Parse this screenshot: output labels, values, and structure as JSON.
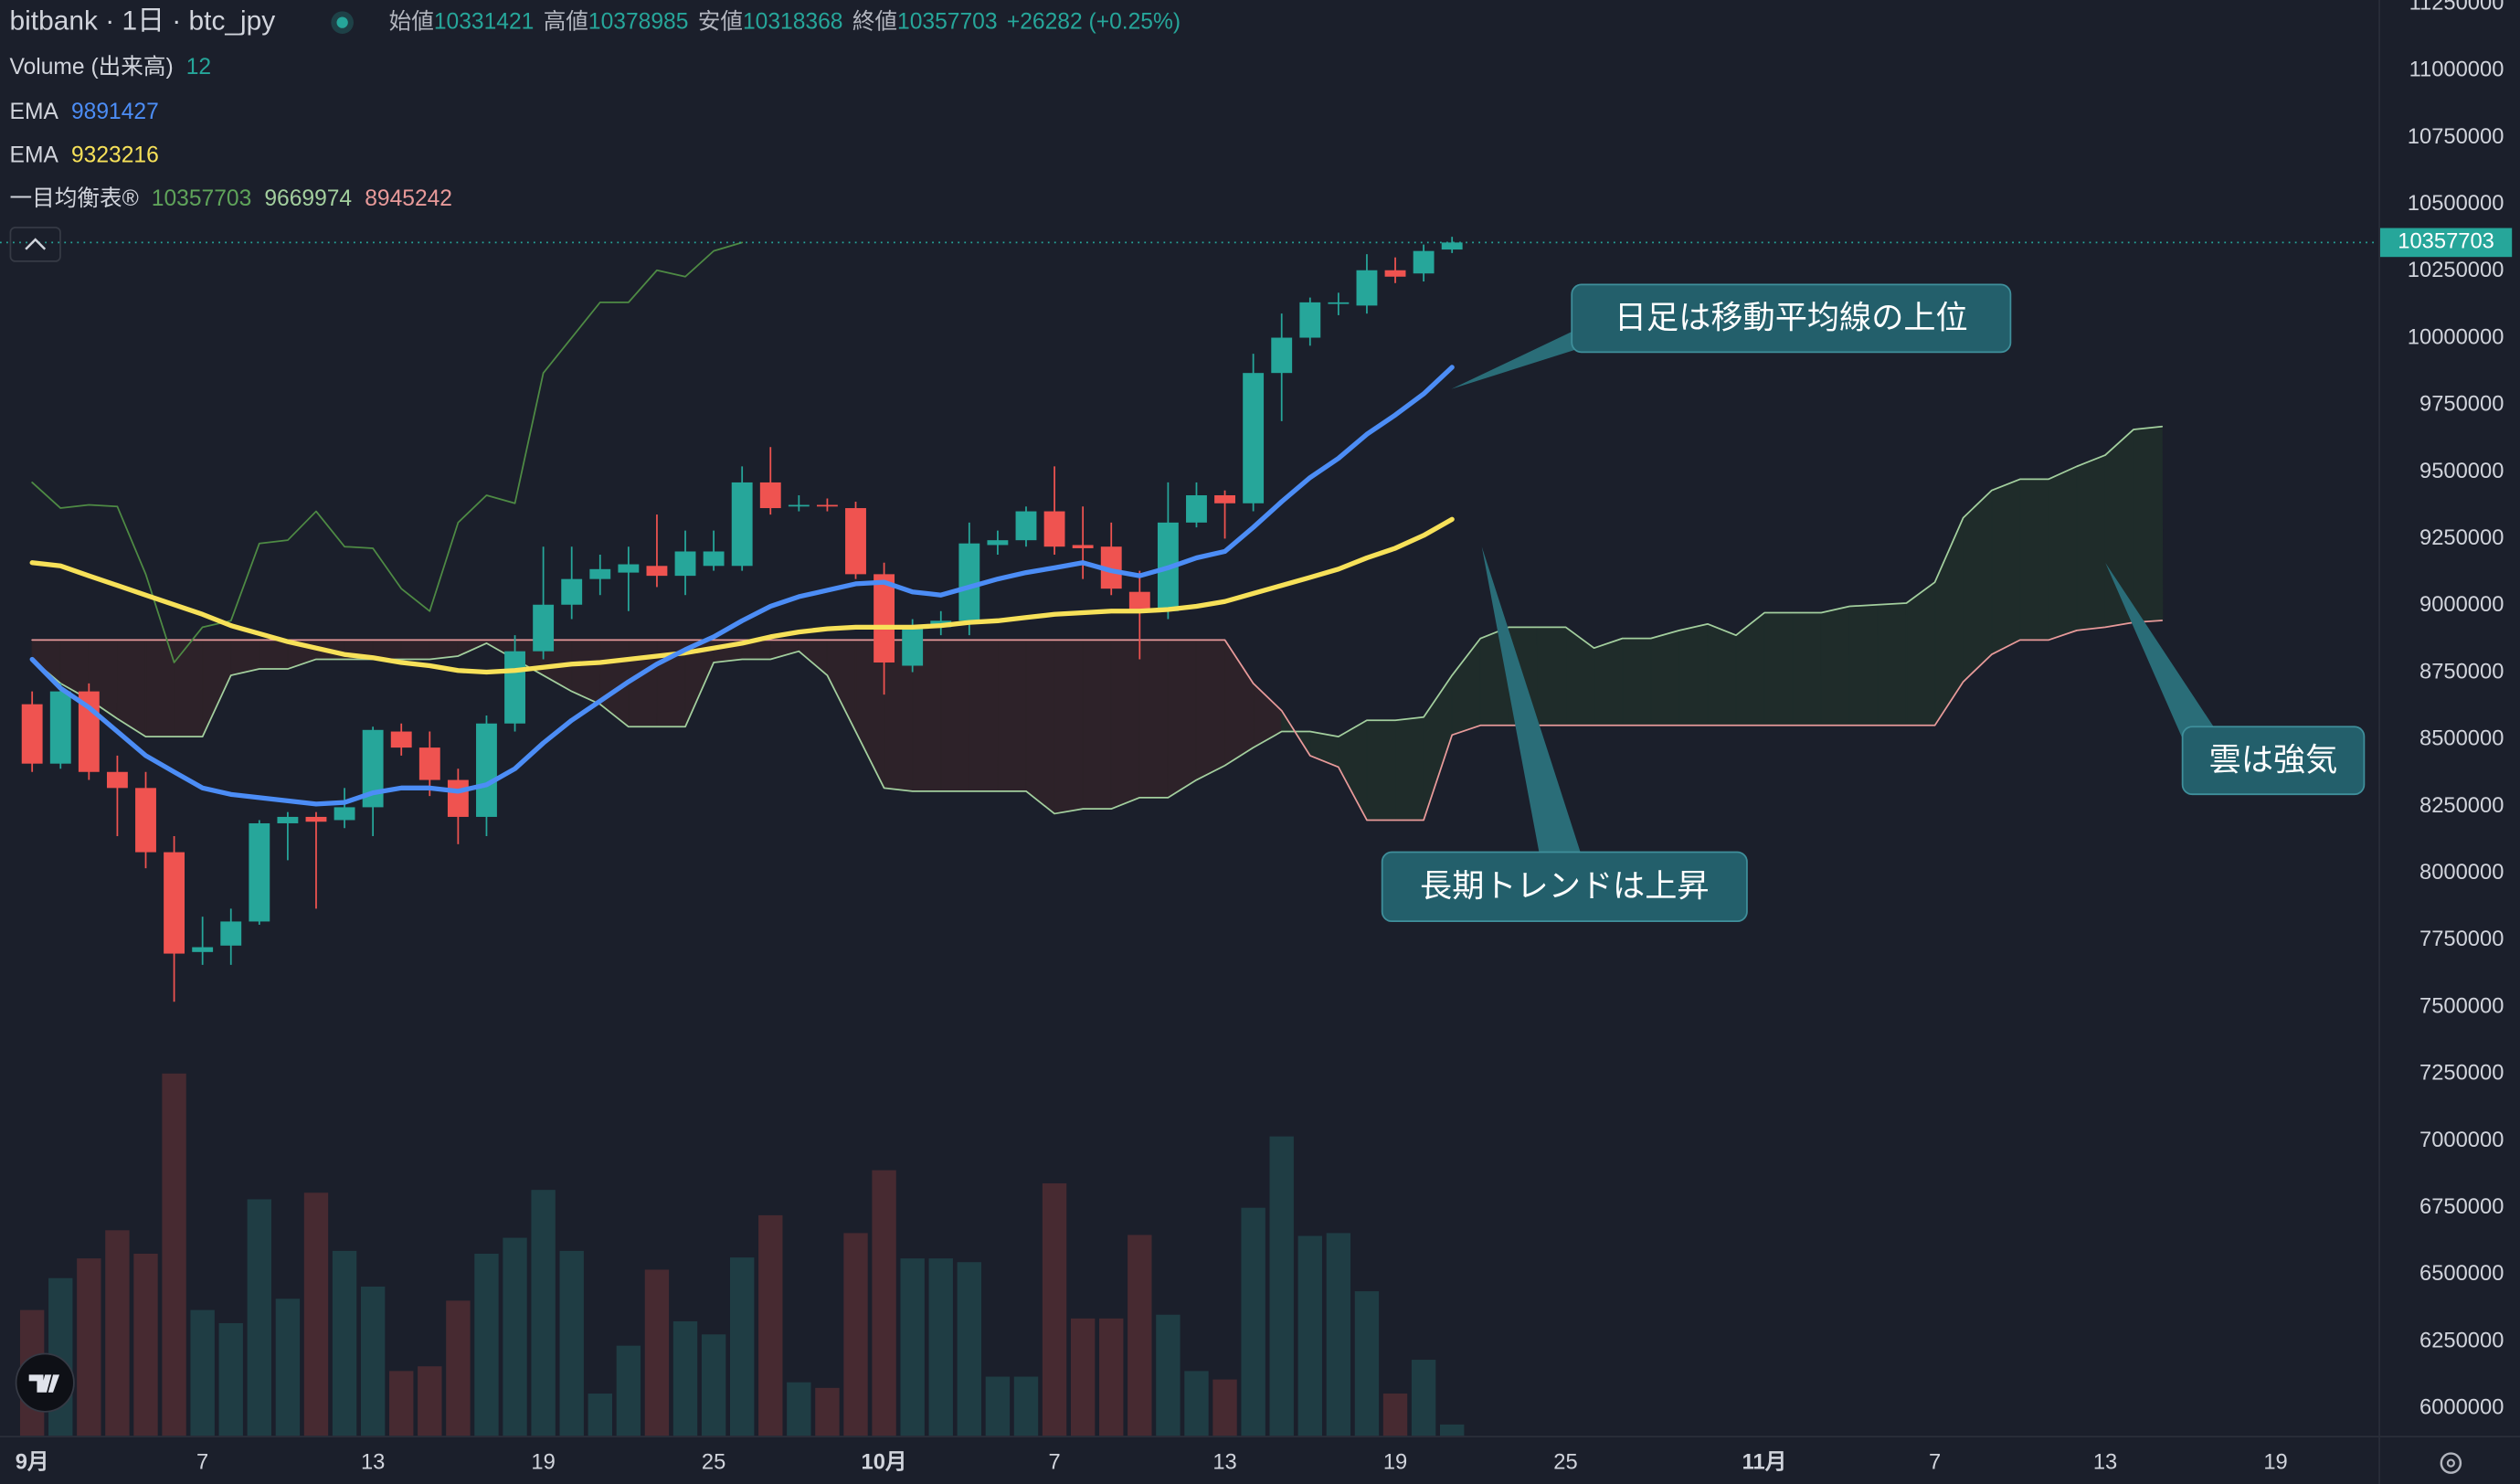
{
  "header": {
    "symbol": "bitbank · 1日 · btc_jpy",
    "labels": [
      "始値",
      "高値",
      "安値",
      "終値"
    ],
    "change": "+26282 (+0.25%)"
  },
  "chart_data": {
    "type": "candlestick",
    "categories": [
      "9月",
      null,
      null,
      null,
      null,
      null,
      "7",
      null,
      null,
      null,
      null,
      null,
      "13",
      null,
      null,
      null,
      null,
      null,
      "19",
      null,
      null,
      null,
      null,
      null,
      "25",
      null,
      null,
      null,
      null,
      null,
      "10月",
      null,
      null,
      null,
      null,
      null,
      "7",
      null,
      null,
      null,
      null,
      null,
      "13",
      null,
      null,
      null,
      null,
      null,
      "19",
      null,
      null,
      null,
      null,
      null,
      "25",
      null,
      null,
      null,
      null,
      null,
      null,
      "11月",
      null,
      null,
      null,
      null,
      null,
      "7",
      null,
      null,
      null,
      null,
      null,
      "13",
      null,
      null,
      null,
      null,
      null,
      "19",
      null,
      null,
      null
    ],
    "open": [
      8632000,
      8410000,
      8680000,
      8379000,
      8319000,
      8079000,
      7706000,
      7730000,
      7820000,
      8187000,
      8211000,
      8199000,
      8247000,
      8530000,
      8470000,
      8349000,
      8211000,
      8560000,
      8830000,
      9004000,
      9100000,
      9124000,
      9149000,
      9112000,
      9149000,
      9149000,
      9461000,
      9371000,
      9377000,
      9365000,
      9118000,
      8776000,
      8920000,
      8944000,
      9227000,
      9245000,
      9353000,
      9227000,
      9221000,
      9052000,
      8980000,
      9311000,
      9413000,
      9383000,
      9870000,
      10002000,
      10128000,
      10122000,
      10254000,
      10242000,
      10331421,
      null,
      null,
      null,
      null,
      null,
      null,
      null,
      null,
      null,
      null,
      null,
      null,
      null,
      null,
      null,
      null,
      null,
      null,
      null,
      null,
      null,
      null,
      null,
      null,
      null,
      null,
      null,
      null,
      null,
      null,
      null,
      null
    ],
    "high": [
      8680000,
      8710000,
      8710000,
      8440000,
      8379000,
      8139000,
      7838000,
      7868000,
      8199000,
      8229000,
      8229000,
      8319000,
      8548000,
      8560000,
      8530000,
      8391000,
      8590000,
      8890000,
      9221000,
      9221000,
      9191000,
      9221000,
      9341000,
      9281000,
      9281000,
      9521000,
      9593000,
      9413000,
      9401000,
      9389000,
      9161000,
      8950000,
      8980000,
      9311000,
      9281000,
      9371000,
      9521000,
      9371000,
      9311000,
      9131000,
      9461000,
      9461000,
      9431000,
      9942000,
      10092000,
      10152000,
      10170000,
      10314000,
      10302000,
      10350000,
      10378985,
      null,
      null,
      null,
      null,
      null,
      null,
      null,
      null,
      null,
      null,
      null,
      null,
      null,
      null,
      null,
      null,
      null,
      null,
      null,
      null,
      null,
      null,
      null,
      null,
      null,
      null,
      null,
      null,
      null,
      null,
      null,
      null
    ],
    "low": [
      8379000,
      8391000,
      8349000,
      8139000,
      8019000,
      7520000,
      7658000,
      7658000,
      7808000,
      8049000,
      7868000,
      8169000,
      8139000,
      8440000,
      8289000,
      8109000,
      8139000,
      8530000,
      8800000,
      8950000,
      9040000,
      8980000,
      9070000,
      9040000,
      9131000,
      9131000,
      9341000,
      9353000,
      9353000,
      9100000,
      8668000,
      8752000,
      8890000,
      8890000,
      9191000,
      9221000,
      9191000,
      9100000,
      9040000,
      8800000,
      8950000,
      9293000,
      9251000,
      9353000,
      9690000,
      9972000,
      10086000,
      10092000,
      10206000,
      10212000,
      10318368,
      null,
      null,
      null,
      null,
      null,
      null,
      null,
      null,
      null,
      null,
      null,
      null,
      null,
      null,
      null,
      null,
      null,
      null,
      null,
      null,
      null,
      null,
      null,
      null,
      null,
      null,
      null,
      null,
      null,
      null,
      null,
      null
    ],
    "close": [
      8410000,
      8680000,
      8379000,
      8319000,
      8079000,
      7700000,
      7724000,
      7820000,
      8187000,
      8211000,
      8193000,
      8247000,
      8536000,
      8470000,
      8349000,
      8211000,
      8560000,
      8830000,
      9004000,
      9100000,
      9137000,
      9155000,
      9112000,
      9203000,
      9203000,
      9461000,
      9365000,
      9377000,
      9371000,
      9118000,
      8788000,
      8920000,
      8944000,
      9233000,
      9245000,
      9353000,
      9221000,
      9215000,
      9064000,
      8980000,
      9311000,
      9413000,
      9383000,
      9870000,
      10002000,
      10134000,
      10134000,
      10254000,
      10230000,
      10326000,
      10357703,
      null,
      null,
      null,
      null,
      null,
      null,
      null,
      null,
      null,
      null,
      null,
      null,
      null,
      null,
      null,
      null,
      null,
      null,
      null,
      null,
      null,
      null,
      null,
      null,
      null,
      null,
      null,
      null,
      null,
      null,
      null,
      null
    ],
    "up_color": "#26a69a",
    "down_color": "#ef5350",
    "ylim": [
      5898000,
      11264000
    ],
    "yticks": [
      6000000,
      6250000,
      6500000,
      6750000,
      7000000,
      7250000,
      7500000,
      7750000,
      8000000,
      8250000,
      8500000,
      8750000,
      9000000,
      9250000,
      9500000,
      9750000,
      10000000,
      10250000,
      10500000,
      10750000,
      11000000,
      11250000
    ],
    "y2lim": [
      0,
      1530
    ],
    "grid": false,
    "volume": {
      "name": "Volume (出来高)",
      "axis": "y2",
      "up_color": "#1f3d44",
      "down_color": "#472a31",
      "values": [
        134,
        168,
        189,
        219,
        194,
        386,
        134,
        120,
        252,
        146,
        259,
        197,
        159,
        69,
        74,
        144,
        194,
        211,
        262,
        197,
        45,
        96,
        177,
        122,
        108,
        190,
        235,
        57,
        51,
        216,
        283,
        189,
        189,
        185,
        63,
        63,
        269,
        125,
        125,
        214,
        129,
        69,
        60,
        243,
        319,
        213,
        216,
        154,
        45,
        81,
        12,
        null,
        null,
        null,
        null,
        null,
        null,
        null,
        null,
        null,
        null,
        null,
        null,
        null,
        null,
        null,
        null,
        null,
        null,
        null,
        null,
        null,
        null,
        null,
        null,
        null,
        null,
        null,
        null,
        null,
        null,
        null,
        null
      ]
    },
    "ichimoku_name": "一目均衡表®",
    "cloud_up_color": "#1f2c2a",
    "cloud_down_color": "#2d2229",
    "series": [
      {
        "name": "EMA",
        "color": "#4c8df6",
        "width": 3,
        "values": [
          8800000,
          8692000,
          8620000,
          8530000,
          8440000,
          8379000,
          8319000,
          8295000,
          8283000,
          8271000,
          8259000,
          8265000,
          8301000,
          8319000,
          8319000,
          8307000,
          8331000,
          8391000,
          8487000,
          8572000,
          8644000,
          8716000,
          8782000,
          8836000,
          8884000,
          8944000,
          8998000,
          9034000,
          9058000,
          9082000,
          9088000,
          9052000,
          9040000,
          9070000,
          9100000,
          9124000,
          9142000,
          9161000,
          9131000,
          9112000,
          9142000,
          9179000,
          9203000,
          9293000,
          9389000,
          9479000,
          9551000,
          9641000,
          9713000,
          9792000,
          9891427,
          null,
          null,
          null,
          null,
          null,
          null,
          null,
          null,
          null,
          null,
          null,
          null,
          null,
          null,
          null,
          null,
          null,
          null,
          null,
          null,
          null,
          null,
          null,
          null,
          null,
          null,
          null,
          null,
          null,
          null,
          null,
          null
        ]
      },
      {
        "name": "EMA",
        "color": "#f7e159",
        "width": 3,
        "values": [
          9161000,
          9149000,
          9112000,
          9076000,
          9040000,
          9004000,
          8968000,
          8926000,
          8896000,
          8866000,
          8842000,
          8818000,
          8806000,
          8788000,
          8776000,
          8758000,
          8752000,
          8758000,
          8770000,
          8782000,
          8788000,
          8800000,
          8812000,
          8824000,
          8842000,
          8860000,
          8884000,
          8902000,
          8914000,
          8920000,
          8920000,
          8920000,
          8926000,
          8938000,
          8944000,
          8956000,
          8968000,
          8974000,
          8980000,
          8980000,
          8986000,
          8998000,
          9016000,
          9046000,
          9076000,
          9106000,
          9137000,
          9179000,
          9215000,
          9263000,
          9323216,
          null,
          null,
          null,
          null,
          null,
          null,
          null,
          null,
          null,
          null,
          null,
          null,
          null,
          null,
          null,
          null,
          null,
          null,
          null,
          null,
          null,
          null,
          null,
          null,
          null,
          null,
          null,
          null,
          null,
          null,
          null,
          null
        ]
      },
      {
        "color": "#4e8a44",
        "width": 1,
        "values": [
          9461000,
          9365000,
          9377000,
          9371000,
          9118000,
          8788000,
          8920000,
          8944000,
          9233000,
          9245000,
          9353000,
          9221000,
          9215000,
          9064000,
          8980000,
          9311000,
          9413000,
          9383000,
          9870000,
          10002000,
          10134000,
          10134000,
          10254000,
          10230000,
          10326000,
          10357703,
          null,
          null,
          null,
          null,
          null,
          null,
          null,
          null,
          null,
          null,
          null,
          null,
          null,
          null,
          null,
          null,
          null,
          null,
          null,
          null,
          null,
          null,
          null,
          null,
          null,
          null,
          null,
          null,
          null,
          null,
          null,
          null,
          null,
          null,
          null,
          null,
          null,
          null,
          null,
          null,
          null,
          null,
          null,
          null,
          null,
          null,
          null,
          null,
          null,
          null,
          null,
          null,
          null,
          null,
          null,
          null,
          null
        ]
      },
      {
        "color": "#a3cf9e",
        "width": 1,
        "values": [
          8800000,
          8710000,
          8650000,
          8578000,
          8511000,
          8511000,
          8511000,
          8740000,
          8764000,
          8764000,
          8800000,
          8800000,
          8800000,
          8800000,
          8800000,
          8812000,
          8860000,
          8800000,
          8740000,
          8680000,
          8632000,
          8548000,
          8548000,
          8548000,
          8788000,
          8800000,
          8800000,
          8830000,
          8740000,
          8530000,
          8319000,
          8307000,
          8307000,
          8307000,
          8307000,
          8307000,
          8223000,
          8241000,
          8241000,
          8283000,
          8283000,
          8349000,
          8403000,
          8470000,
          8530000,
          8530000,
          8511000,
          8572000,
          8572000,
          8584000,
          8740000,
          8878000,
          8920000,
          8920000,
          8920000,
          8842000,
          8878000,
          8878000,
          8908000,
          8932000,
          8890000,
          8974000,
          8974000,
          8974000,
          8998000,
          9004000,
          9010000,
          9088000,
          9329000,
          9431000,
          9473000,
          9473000,
          9521000,
          9563000,
          9659000,
          9669974,
          null,
          null,
          null,
          null,
          null,
          null,
          null
        ]
      },
      {
        "color": "#e89a9a",
        "width": 1,
        "values": [
          8872000,
          8872000,
          8872000,
          8872000,
          8872000,
          8872000,
          8872000,
          8872000,
          8872000,
          8872000,
          8872000,
          8872000,
          8872000,
          8872000,
          8872000,
          8872000,
          8872000,
          8872000,
          8872000,
          8872000,
          8872000,
          8872000,
          8872000,
          8872000,
          8872000,
          8872000,
          8872000,
          8872000,
          8872000,
          8872000,
          8872000,
          8872000,
          8872000,
          8872000,
          8872000,
          8872000,
          8872000,
          8872000,
          8872000,
          8872000,
          8872000,
          8872000,
          8872000,
          8710000,
          8608000,
          8440000,
          8397000,
          8199000,
          8199000,
          8199000,
          8517000,
          8553000,
          8553000,
          8553000,
          8553000,
          8553000,
          8553000,
          8553000,
          8553000,
          8553000,
          8553000,
          8553000,
          8553000,
          8553000,
          8553000,
          8553000,
          8553000,
          8553000,
          8716000,
          8818000,
          8872000,
          8872000,
          8908000,
          8920000,
          8938000,
          8945242,
          null,
          null,
          null,
          null,
          null,
          null,
          null
        ]
      }
    ],
    "annotations": [
      {
        "text": "日足は移動平均線の上位"
      },
      {
        "text": "長期トレンドは上昇"
      },
      {
        "text": "雲は強気"
      }
    ]
  }
}
